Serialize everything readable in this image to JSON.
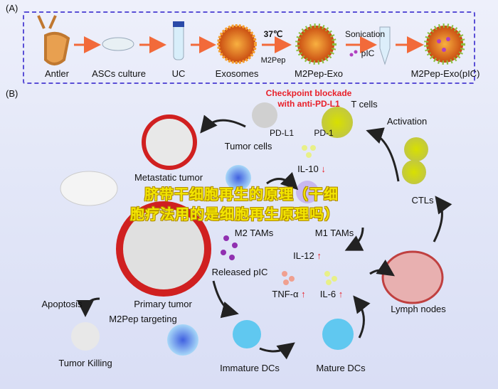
{
  "panel_a": {
    "label": "(A)",
    "steps": [
      "Antler",
      "ASCs culture",
      "UC",
      "Exosomes",
      "M2Pep-Exo",
      "M2Pep-Exo(pIC)"
    ],
    "temp": "37℃",
    "peptide": "M2Pep",
    "sonication": "Sonication",
    "cargo": "pIC"
  },
  "panel_b": {
    "label": "(B)",
    "checkpoint_line1": "Checkpoint blockade",
    "checkpoint_line2": "with anti-PD-L1",
    "t_cells": "T cells",
    "pd_l1": "PD-L1",
    "pd_1": "PD-1",
    "tumor_cells": "Tumor cells",
    "activation": "Activation",
    "il10": "IL-10",
    "metastatic_tumor": "Metastatic tumor",
    "ctls": "CTLs",
    "m2_tams": "M2 TAMs",
    "m1_tams": "M1 TAMs",
    "il12": "IL-12",
    "released_pic": "Released pIC",
    "tnf": "TNF-α",
    "il6": "IL-6",
    "lymph_nodes": "Lymph nodes",
    "apoptosis": "Apoptosis",
    "primary_tumor": "Primary tumor",
    "m2pep_targeting": "M2Pep targeting",
    "tumor_killing": "Tumor Killing",
    "immature_dcs": "Immature DCs",
    "mature_dcs": "Mature DCs",
    "down_arrow": "↓",
    "up_arrow": "↑"
  },
  "watermark": {
    "line1": "脐带干细胞再生的原理（干细",
    "line2": "胞疗法用的是细胞再生原理吗）"
  },
  "colors": {
    "accent_red": "#e8202a",
    "dash": "#5a4fd6",
    "arrow": "#f26a3a",
    "watermark": "#f3e600"
  }
}
